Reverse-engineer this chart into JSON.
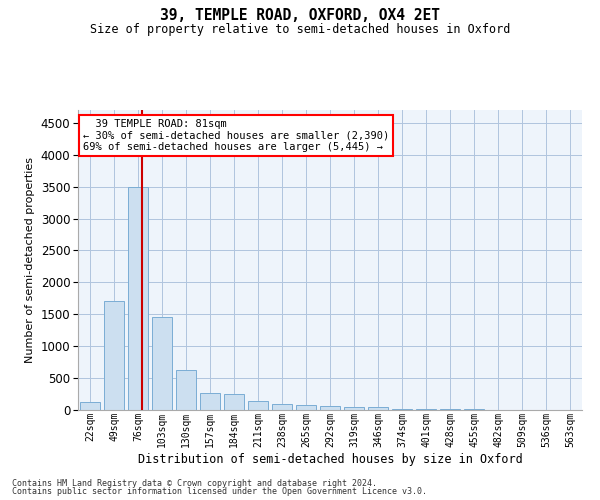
{
  "title": "39, TEMPLE ROAD, OXFORD, OX4 2ET",
  "subtitle": "Size of property relative to semi-detached houses in Oxford",
  "xlabel": "Distribution of semi-detached houses by size in Oxford",
  "ylabel": "Number of semi-detached properties",
  "footnote1": "Contains HM Land Registry data © Crown copyright and database right 2024.",
  "footnote2": "Contains public sector information licensed under the Open Government Licence v3.0.",
  "property_label": "39 TEMPLE ROAD: 81sqm",
  "annotation_line1": "← 30% of semi-detached houses are smaller (2,390)",
  "annotation_line2": "69% of semi-detached houses are larger (5,445) →",
  "property_size": 81,
  "bar_color": "#ccdff0",
  "bar_edge_color": "#7aadd4",
  "marker_color": "#cc0000",
  "grid_color": "#b0c4de",
  "bg_color": "#eef4fb",
  "categories": [
    "22sqm",
    "49sqm",
    "76sqm",
    "103sqm",
    "130sqm",
    "157sqm",
    "184sqm",
    "211sqm",
    "238sqm",
    "265sqm",
    "292sqm",
    "319sqm",
    "346sqm",
    "374sqm",
    "401sqm",
    "428sqm",
    "455sqm",
    "482sqm",
    "509sqm",
    "536sqm",
    "563sqm"
  ],
  "values": [
    120,
    1700,
    3500,
    1450,
    620,
    260,
    250,
    140,
    90,
    80,
    60,
    45,
    40,
    20,
    15,
    10,
    8,
    6,
    5,
    4,
    4
  ],
  "ylim": [
    0,
    4700
  ],
  "yticks": [
    0,
    500,
    1000,
    1500,
    2000,
    2500,
    3000,
    3500,
    4000,
    4500
  ]
}
